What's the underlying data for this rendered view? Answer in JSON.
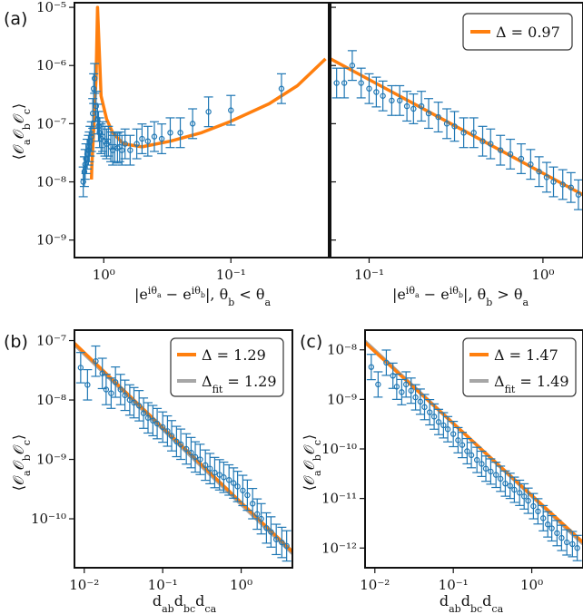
{
  "colors": {
    "model": "#ff7f0e",
    "fit": "#a6a6a6",
    "data": "#1f77b4"
  },
  "chart_data": [
    {
      "id": "a-left",
      "panel_label": "(a)",
      "type": "scatter",
      "xscale": "log",
      "yscale": "log",
      "xaxis": "reversed",
      "xlim": [
        1.7,
        0.017
      ],
      "ylim": [
        5e-10,
        1.2e-05
      ],
      "xlabel": "|e^{iθa} − e^{iθb}|, θb < θa",
      "ylabel": "⟨OaObOc⟩",
      "xticks": [
        {
          "v": 1,
          "label": "10⁰"
        },
        {
          "v": 0.1,
          "label": "10⁻¹"
        }
      ],
      "yticks": [
        {
          "v": 1e-09,
          "label": "10⁻⁹"
        },
        {
          "v": 1e-08,
          "label": "10⁻⁸"
        },
        {
          "v": 1e-07,
          "label": "10⁻⁷"
        },
        {
          "v": 1e-06,
          "label": "10⁻⁶"
        },
        {
          "v": 1e-05,
          "label": "10⁻⁵"
        }
      ],
      "model_line": {
        "x": [
          1.25,
          1.24,
          1.22,
          1.2,
          1.18,
          1.15,
          1.12,
          1.05,
          0.95,
          0.85,
          0.7,
          0.5,
          0.3,
          0.17,
          0.1,
          0.05,
          0.03,
          0.018
        ],
        "y": [
          1.1e-08,
          2e-08,
          4e-08,
          8e-08,
          2e-07,
          6e-07,
          1e-05,
          3e-07,
          1.2e-07,
          7e-08,
          4.5e-08,
          4e-08,
          5e-08,
          7e-08,
          1.1e-07,
          2.2e-07,
          4.5e-07,
          1.3e-06
        ]
      },
      "points": {
        "x": [
          1.45,
          1.42,
          1.4,
          1.38,
          1.35,
          1.32,
          1.3,
          1.28,
          1.25,
          1.22,
          1.2,
          1.18,
          1.15,
          1.12,
          1.1,
          1.08,
          1.05,
          1.02,
          0.98,
          0.95,
          0.92,
          0.88,
          0.85,
          0.82,
          0.78,
          0.75,
          0.72,
          0.68,
          0.62,
          0.55,
          0.5,
          0.45,
          0.4,
          0.35,
          0.3,
          0.25,
          0.2,
          0.15,
          0.1,
          0.04
        ],
        "y": [
          1e-08,
          1.5e-08,
          2e-08,
          2.5e-08,
          3e-08,
          3.5e-08,
          4e-08,
          5e-08,
          6e-08,
          1.5e-07,
          4e-07,
          6e-07,
          2e-07,
          1.2e-07,
          9e-08,
          7e-08,
          5.5e-08,
          6e-08,
          5e-08,
          4.5e-08,
          5e-08,
          4e-08,
          3.5e-08,
          4e-08,
          3.8e-08,
          4e-08,
          3.5e-08,
          4.5e-08,
          3.5e-08,
          4.5e-08,
          5.5e-08,
          5e-08,
          6e-08,
          5.5e-08,
          7e-08,
          7e-08,
          1e-07,
          1.6e-07,
          1.7e-07,
          4e-07
        ]
      }
    },
    {
      "id": "a-right",
      "type": "scatter",
      "xscale": "log",
      "yscale": "log",
      "xaxis": "reversed",
      "xlim": [
        0.06,
        1.7
      ],
      "ylim": [
        5e-10,
        1.2e-05
      ],
      "xlabel": "|e^{iθa} − e^{iθb}|, θb > θa",
      "xticks": [
        {
          "v": 0.1,
          "label": "10⁻¹"
        },
        {
          "v": 1,
          "label": "10⁰"
        }
      ],
      "legend": [
        {
          "style": "model",
          "label": "Δ = 0.97"
        }
      ],
      "model_line": {
        "x": [
          0.06,
          1.7
        ],
        "y": [
          1.3e-06,
          6e-09
        ]
      },
      "points": {
        "x": [
          0.065,
          0.072,
          0.08,
          0.09,
          0.1,
          0.11,
          0.12,
          0.135,
          0.15,
          0.165,
          0.18,
          0.2,
          0.22,
          0.25,
          0.28,
          0.31,
          0.35,
          0.4,
          0.45,
          0.5,
          0.57,
          0.65,
          0.75,
          0.85,
          0.95,
          1.05,
          1.15,
          1.3,
          1.45,
          1.6
        ],
        "y": [
          5e-07,
          5e-07,
          1e-06,
          5e-07,
          4e-07,
          3.5e-07,
          3e-07,
          2.5e-07,
          2.5e-07,
          2e-07,
          1.8e-07,
          2e-07,
          1.5e-07,
          1.3e-07,
          1e-07,
          9e-08,
          7e-08,
          7e-08,
          5e-08,
          4.5e-08,
          3.5e-08,
          3e-08,
          2.5e-08,
          2e-08,
          1.5e-08,
          1.2e-08,
          1e-08,
          9e-09,
          8e-09,
          6e-09
        ]
      }
    },
    {
      "id": "b",
      "panel_label": "(b)",
      "type": "scatter",
      "xscale": "log",
      "yscale": "log",
      "xlim": [
        0.0075,
        4.5
      ],
      "ylim": [
        1.5e-11,
        1.5e-07
      ],
      "xlabel": "d_ab d_bc d_ca",
      "ylabel": "⟨OaObOc⟩",
      "xticks": [
        {
          "v": 0.01,
          "label": "10⁻²"
        },
        {
          "v": 0.1,
          "label": "10⁻¹"
        },
        {
          "v": 1,
          "label": "10⁰"
        }
      ],
      "yticks": [
        {
          "v": 1e-10,
          "label": "10⁻¹⁰"
        },
        {
          "v": 1e-09,
          "label": "10⁻⁹"
        },
        {
          "v": 1e-08,
          "label": "10⁻⁸"
        },
        {
          "v": 1e-07,
          "label": "10⁻⁷"
        }
      ],
      "legend": [
        {
          "style": "model",
          "label": "Δ = 1.29"
        },
        {
          "style": "fit",
          "label": "Δfit = 1.29"
        }
      ],
      "model_line": {
        "x": [
          0.0075,
          4.5
        ],
        "y": [
          9e-08,
          2.8e-11
        ]
      },
      "fit_line": {
        "x": [
          0.0075,
          4.5
        ],
        "y": [
          8.5e-08,
          2.6e-11
        ]
      },
      "points": {
        "x": [
          0.009,
          0.011,
          0.014,
          0.017,
          0.019,
          0.022,
          0.025,
          0.029,
          0.033,
          0.038,
          0.043,
          0.05,
          0.057,
          0.065,
          0.075,
          0.085,
          0.1,
          0.115,
          0.13,
          0.15,
          0.17,
          0.2,
          0.23,
          0.26,
          0.3,
          0.35,
          0.4,
          0.46,
          0.53,
          0.6,
          0.7,
          0.8,
          0.9,
          1.05,
          1.2,
          1.4,
          1.6,
          1.8,
          2.1,
          2.4,
          2.8,
          3.3,
          3.8
        ],
        "y": [
          3.5e-08,
          1.8e-08,
          4.5e-08,
          2.8e-08,
          1.5e-08,
          1.3e-08,
          2e-08,
          1.5e-08,
          1.2e-08,
          1e-08,
          9e-09,
          8e-09,
          6e-09,
          5e-09,
          4.5e-09,
          4e-09,
          3.5e-09,
          3e-09,
          2.5e-09,
          2e-09,
          1.8e-09,
          1.5e-09,
          1.3e-09,
          1.1e-09,
          1e-09,
          8e-10,
          7e-10,
          6e-10,
          5.5e-10,
          5e-10,
          4.5e-10,
          4e-10,
          3.5e-10,
          3e-10,
          2.5e-10,
          1.8e-10,
          1.2e-10,
          1e-10,
          7e-11,
          6e-11,
          4.5e-11,
          4e-11,
          3.5e-11
        ]
      }
    },
    {
      "id": "c",
      "panel_label": "(c)",
      "type": "scatter",
      "xscale": "log",
      "yscale": "log",
      "xlim": [
        0.0075,
        4.5
      ],
      "ylim": [
        4e-13,
        2.5e-08
      ],
      "xlabel": "d_ab d_bc d_ca",
      "ylabel": "⟨OaObOc⟩",
      "xticks": [
        {
          "v": 0.01,
          "label": "10⁻²"
        },
        {
          "v": 0.1,
          "label": "10⁻¹"
        },
        {
          "v": 1,
          "label": "10⁰"
        }
      ],
      "yticks": [
        {
          "v": 1e-12,
          "label": "10⁻¹²"
        },
        {
          "v": 1e-11,
          "label": "10⁻¹¹"
        },
        {
          "v": 1e-10,
          "label": "10⁻¹⁰"
        },
        {
          "v": 1e-09,
          "label": "10⁻⁹"
        },
        {
          "v": 1e-08,
          "label": "10⁻⁸"
        }
      ],
      "legend": [
        {
          "style": "model",
          "label": "Δ = 1.47"
        },
        {
          "style": "fit",
          "label": "Δfit = 1.49"
        }
      ],
      "model_line": {
        "x": [
          0.0075,
          4.5
        ],
        "y": [
          1.4e-08,
          1.3e-12
        ]
      },
      "fit_line": {
        "x": [
          0.0075,
          4.5
        ],
        "y": [
          1.5e-08,
          1.2e-12
        ]
      },
      "points": {
        "x": [
          0.009,
          0.011,
          0.014,
          0.017,
          0.019,
          0.022,
          0.025,
          0.029,
          0.033,
          0.038,
          0.043,
          0.05,
          0.057,
          0.065,
          0.075,
          0.085,
          0.1,
          0.115,
          0.13,
          0.15,
          0.17,
          0.2,
          0.23,
          0.26,
          0.3,
          0.35,
          0.4,
          0.46,
          0.53,
          0.6,
          0.7,
          0.8,
          0.9,
          1.05,
          1.2,
          1.4,
          1.6,
          1.8,
          2.1,
          2.4,
          2.8,
          3.3,
          3.8
        ],
        "y": [
          4.5e-09,
          2e-09,
          5.5e-09,
          3e-09,
          1.8e-09,
          1.4e-09,
          2e-09,
          1.5e-09,
          1.1e-09,
          9e-10,
          7e-10,
          5.5e-10,
          4.5e-10,
          3.5e-10,
          3e-10,
          2.5e-10,
          2e-10,
          1.5e-10,
          1.2e-10,
          9e-11,
          7.5e-11,
          6e-11,
          5e-11,
          4e-11,
          3.5e-11,
          3e-11,
          2.5e-11,
          2e-11,
          1.8e-11,
          1.5e-11,
          1.3e-11,
          1.1e-11,
          9e-12,
          7e-12,
          5.5e-12,
          4e-12,
          3e-12,
          2.5e-12,
          2e-12,
          1.6e-12,
          1.3e-12,
          1.2e-12,
          1e-12
        ]
      }
    }
  ]
}
